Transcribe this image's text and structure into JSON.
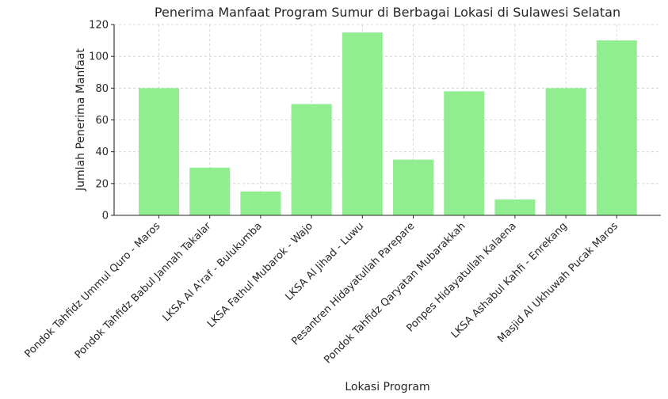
{
  "chart_data": {
    "type": "bar",
    "title": "Penerima Manfaat Program Sumur di Berbagai Lokasi di Sulawesi Selatan",
    "xlabel": "Lokasi Program",
    "ylabel": "Jumlah Penerima Manfaat",
    "categories": [
      "Pondok Tahfidz Ummul Quro - Maros",
      "Pondok Tahfidz Babul Jannah Takalar",
      "LKSA Al A'raf - Bulukumba",
      "LKSA Fathul Mubarok - Wajo",
      "LKSA Al Jihad - Luwu",
      "Pesantren Hidayatullah Parepare",
      "Pondok Tahfidz Qaryatan Mubarakkah",
      "Ponpes Hidayatullah Kalaena",
      "LKSA Ashabul Kahfi - Enrekang",
      "Masjid Al Ukhuwah Pucak Maros"
    ],
    "values": [
      80,
      30,
      15,
      70,
      115,
      35,
      78,
      10,
      80,
      110
    ],
    "ylim": [
      0,
      120
    ],
    "yticks": [
      0,
      20,
      40,
      60,
      80,
      100,
      120
    ],
    "grid": true,
    "colors": {
      "bar": "#90ee90"
    }
  }
}
